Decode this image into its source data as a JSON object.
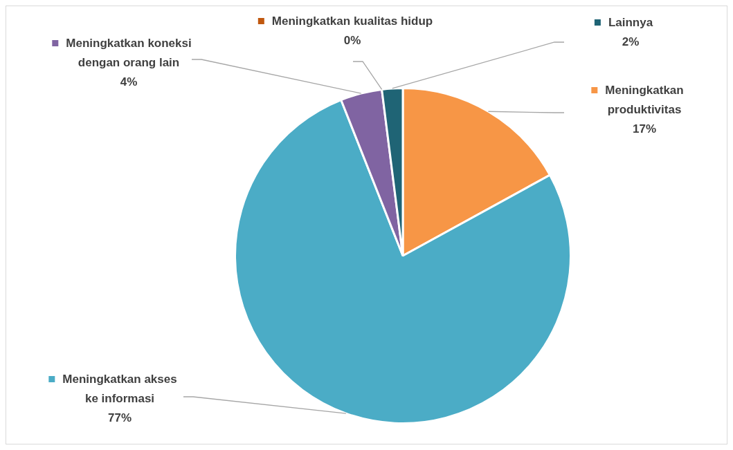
{
  "chart_data": {
    "type": "pie",
    "categories": [
      "Meningkatkan produktivitas",
      "Meningkatkan akses ke informasi",
      "Meningkatkan koneksi dengan orang lain",
      "Meningkatkan kualitas hidup",
      "Lainnya"
    ],
    "values": [
      17,
      77,
      4,
      0,
      2
    ],
    "value_labels": [
      "17%",
      "77%",
      "4%",
      "0%",
      "2%"
    ],
    "colors": [
      "#f79646",
      "#4bacc6",
      "#8064a2",
      "#c0580f",
      "#1f6475"
    ],
    "legend": "top"
  }
}
